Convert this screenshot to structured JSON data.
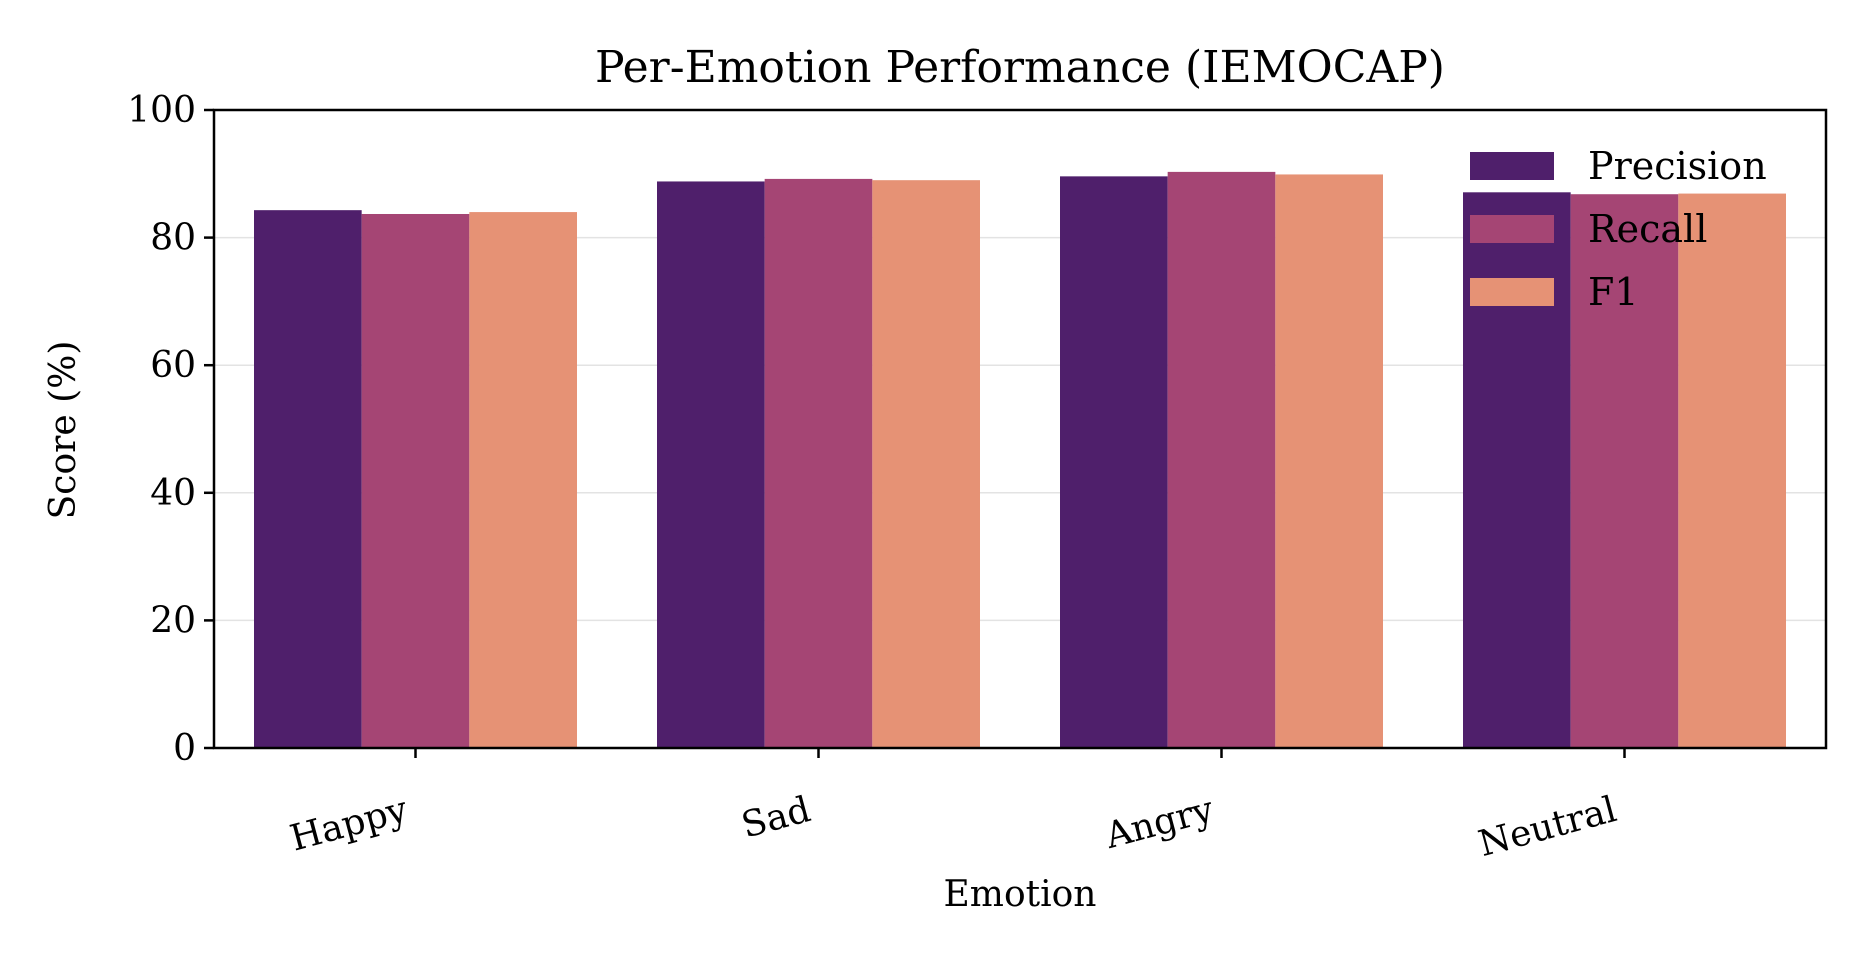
{
  "chart_data": {
    "type": "bar",
    "title": "Per-Emotion Performance (IEMOCAP)",
    "xlabel": "Emotion",
    "ylabel": "Score (%)",
    "categories": [
      "Happy",
      "Sad",
      "Angry",
      "Neutral"
    ],
    "ylim": [
      0,
      100
    ],
    "yticks": [
      0,
      20,
      40,
      60,
      80,
      100
    ],
    "grid": true,
    "legend_position": "top-right",
    "series": [
      {
        "name": "Precision",
        "color": "#4f1f6b",
        "values": [
          84.3,
          88.8,
          89.6,
          87.1
        ]
      },
      {
        "name": "Recall",
        "color": "#a54574",
        "values": [
          83.7,
          89.2,
          90.3,
          86.8
        ]
      },
      {
        "name": "F1",
        "color": "#e69275",
        "values": [
          84.0,
          89.0,
          89.9,
          86.9
        ]
      }
    ]
  }
}
